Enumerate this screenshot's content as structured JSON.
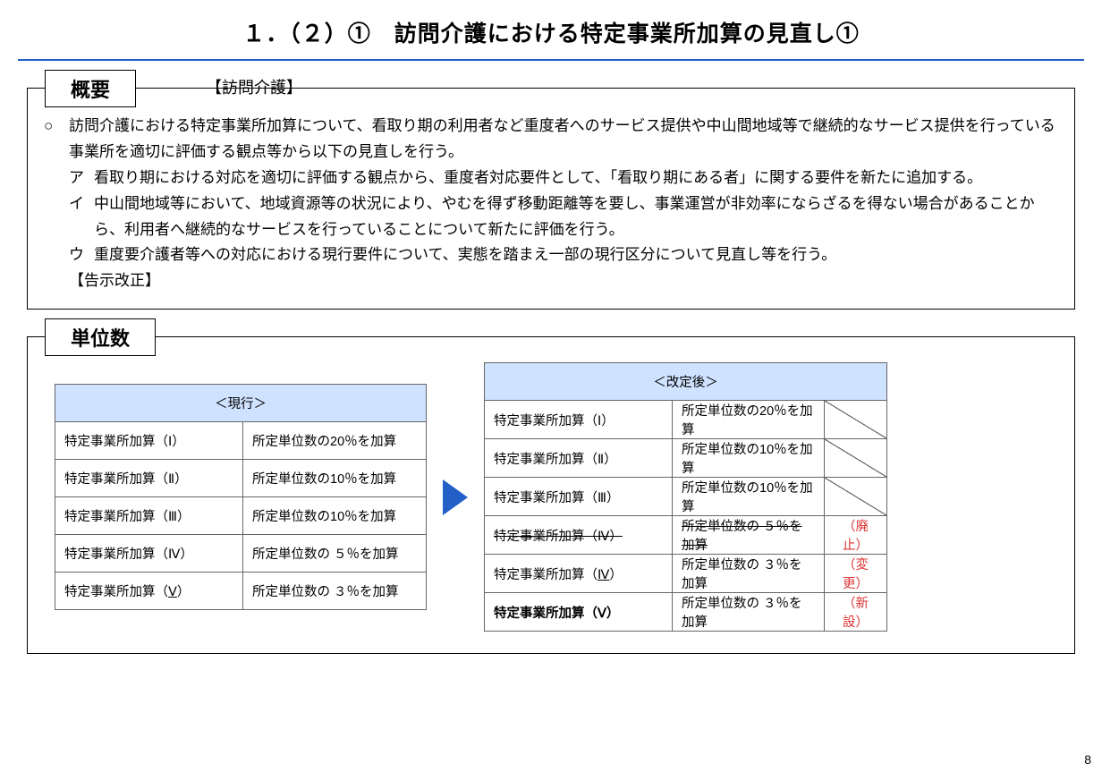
{
  "title": "１．（２）①　訪問介護における特定事業所加算の見直し①",
  "colors": {
    "accent": "#2260c8",
    "header_bg": "#cfe2ff",
    "status_red": "#d33"
  },
  "page_number": "8",
  "overview": {
    "label": "概要",
    "sub": "【訪問介護】",
    "lead_mark": "○",
    "lead": "訪問介護における特定事業所加算について、看取り期の利用者など重度者へのサービス提供や中山間地域等で継続的なサービス提供を行っている事業所を適切に評価する観点等から以下の見直しを行う。",
    "items": [
      {
        "mark": "ア",
        "text": "看取り期における対応を適切に評価する観点から、重度者対応要件として、「看取り期にある者」に関する要件を新たに追加する。"
      },
      {
        "mark": "イ",
        "text": "中山間地域等において、地域資源等の状況により、やむを得ず移動距離等を要し、事業運営が非効率にならざるを得ない場合があることから、利用者へ継続的なサービスを行っていることについて新たに評価を行う。"
      },
      {
        "mark": "ウ",
        "text": "重度要介護者等への対応における現行要件について、実態を踏まえ一部の現行区分について見直し等を行う。"
      }
    ],
    "note": "【告示改正】"
  },
  "units": {
    "label": "単位数",
    "current": {
      "header": "＜現行＞",
      "rows": [
        {
          "name": "特定事業所加算（Ⅰ）",
          "desc": "所定単位数の20％を加算"
        },
        {
          "name": "特定事業所加算（Ⅱ）",
          "desc": "所定単位数の10％を加算"
        },
        {
          "name": "特定事業所加算（Ⅲ）",
          "desc": "所定単位数の10％を加算"
        },
        {
          "name": "特定事業所加算（Ⅳ）",
          "desc": "所定単位数の ５％を加算"
        },
        {
          "name_pre": "特定事業所加算（",
          "name_u": "Ⅴ",
          "name_post": "）",
          "desc": "所定単位数の ３％を加算"
        }
      ]
    },
    "revised": {
      "header": "＜改定後＞",
      "rows": [
        {
          "name": "特定事業所加算（Ⅰ）",
          "desc": "所定単位数の20％を加算",
          "status_slash": true
        },
        {
          "name": "特定事業所加算（Ⅱ）",
          "desc": "所定単位数の10％を加算",
          "status_slash": true
        },
        {
          "name": "特定事業所加算（Ⅲ）",
          "desc": "所定単位数の10％を加算",
          "status_slash": true
        },
        {
          "name": "特定事業所加算（Ⅳ）",
          "desc": "所定単位数の ５％を加算",
          "status": "（廃止）",
          "strike": true
        },
        {
          "name_pre": "特定事業所加算（",
          "name_u": "Ⅳ",
          "name_post": "）",
          "desc": "所定単位数の ３％を加算",
          "status": "（変更）"
        },
        {
          "name": "特定事業所加算（Ⅴ）",
          "desc": "所定単位数の ３％を加算",
          "status": "（新設）",
          "bold": true
        }
      ]
    }
  }
}
